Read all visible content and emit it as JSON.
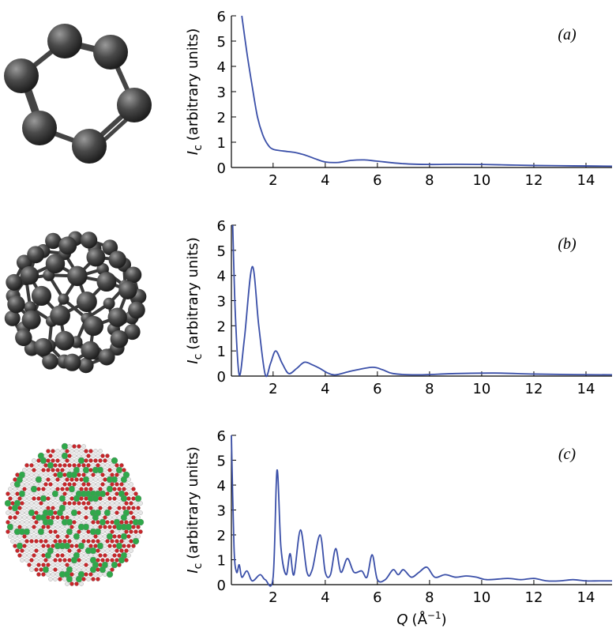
{
  "chart_data": [
    {
      "type": "line",
      "annotation": "(a)",
      "ylabel_symbol": "I",
      "ylabel_subscript": "c",
      "ylabel_text": "(arbitrary units)",
      "color": "#3a4fa8",
      "xlim": [
        0.4,
        15
      ],
      "ylim": [
        0,
        6
      ],
      "xticks": [
        2,
        4,
        6,
        8,
        10,
        12,
        14
      ],
      "yticks": [
        0,
        1,
        2,
        3,
        4,
        5,
        6
      ],
      "x": [
        0.8,
        1.0,
        1.2,
        1.4,
        1.6,
        1.8,
        2.0,
        2.4,
        2.8,
        3.2,
        3.6,
        4.0,
        4.5,
        5.0,
        5.5,
        6.0,
        7,
        8,
        9,
        10,
        11,
        12,
        13,
        14,
        15
      ],
      "values": [
        6,
        4.5,
        3.2,
        2.0,
        1.3,
        0.9,
        0.72,
        0.65,
        0.6,
        0.5,
        0.35,
        0.22,
        0.2,
        0.28,
        0.3,
        0.25,
        0.15,
        0.12,
        0.13,
        0.12,
        0.1,
        0.08,
        0.07,
        0.06,
        0.05
      ]
    },
    {
      "type": "line",
      "annotation": "(b)",
      "ylabel_symbol": "I",
      "ylabel_subscript": "c",
      "ylabel_text": "(arbitrary units)",
      "color": "#3a4fa8",
      "xlim": [
        0.4,
        15
      ],
      "ylim": [
        0,
        6
      ],
      "xticks": [
        2,
        4,
        6,
        8,
        10,
        12,
        14
      ],
      "yticks": [
        0,
        1,
        2,
        3,
        4,
        5,
        6
      ],
      "x": [
        0.45,
        0.55,
        0.7,
        0.9,
        1.2,
        1.45,
        1.7,
        1.9,
        2.1,
        2.35,
        2.6,
        2.9,
        3.2,
        3.5,
        3.8,
        4.1,
        4.4,
        5.0,
        5.8,
        6.2,
        6.6,
        7.5,
        9,
        10.5,
        12,
        13.5,
        15
      ],
      "values": [
        6,
        2.5,
        0.05,
        1.5,
        4.35,
        2.0,
        0.05,
        0.5,
        1.0,
        0.5,
        0.1,
        0.3,
        0.55,
        0.45,
        0.3,
        0.12,
        0.05,
        0.2,
        0.35,
        0.25,
        0.1,
        0.05,
        0.1,
        0.12,
        0.08,
        0.06,
        0.05
      ]
    },
    {
      "type": "line",
      "annotation": "(c)",
      "ylabel_symbol": "I",
      "ylabel_subscript": "c",
      "ylabel_text": "(arbitrary units)",
      "xlabel_symbol": "Q",
      "xlabel_open": "(Å",
      "xlabel_sup": "−1",
      "xlabel_close": ")",
      "color": "#3a4fa8",
      "xlim": [
        0.4,
        15
      ],
      "ylim": [
        0,
        6
      ],
      "xticks": [
        2,
        4,
        6,
        8,
        10,
        12,
        14
      ],
      "yticks": [
        0,
        1,
        2,
        3,
        4,
        5,
        6
      ],
      "x": [
        0.4,
        0.5,
        0.6,
        0.7,
        0.8,
        1.0,
        1.2,
        1.5,
        1.7,
        2.0,
        2.15,
        2.3,
        2.5,
        2.65,
        2.8,
        3.05,
        3.3,
        3.5,
        3.8,
        4.0,
        4.2,
        4.4,
        4.6,
        4.85,
        5.1,
        5.4,
        5.6,
        5.8,
        6.0,
        6.3,
        6.6,
        6.8,
        7.0,
        7.3,
        7.6,
        7.9,
        8.2,
        8.6,
        9,
        9.4,
        9.8,
        10.2,
        11,
        11.5,
        12,
        12.5,
        13,
        13.5,
        14,
        14.5,
        15
      ],
      "values": [
        6,
        1.5,
        0.5,
        0.8,
        0.3,
        0.55,
        0.15,
        0.4,
        0.2,
        0.3,
        4.6,
        1.5,
        0.4,
        1.25,
        0.4,
        2.2,
        0.5,
        0.6,
        2.0,
        0.5,
        0.4,
        1.45,
        0.5,
        1.05,
        0.5,
        0.55,
        0.3,
        1.2,
        0.2,
        0.2,
        0.6,
        0.4,
        0.6,
        0.3,
        0.5,
        0.7,
        0.3,
        0.4,
        0.3,
        0.35,
        0.3,
        0.2,
        0.25,
        0.2,
        0.25,
        0.15,
        0.15,
        0.2,
        0.15,
        0.15,
        0.15
      ]
    }
  ]
}
